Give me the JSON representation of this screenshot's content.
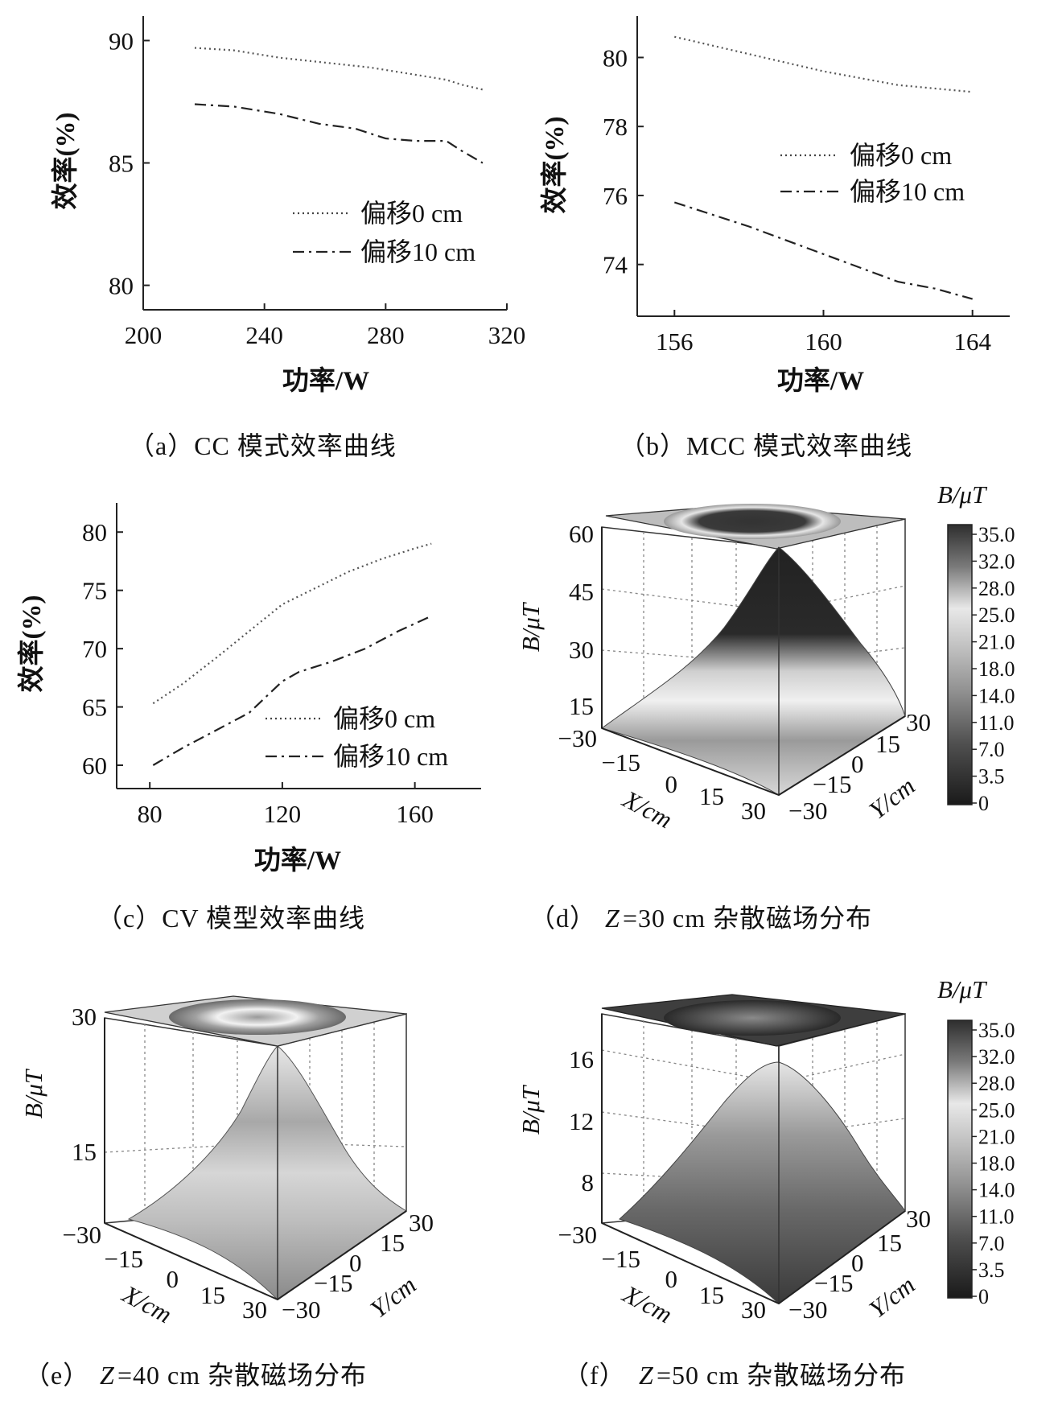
{
  "captions": {
    "a": "（a）CC 模式效率曲线",
    "b": "（b）MCC 模式效率曲线",
    "c": "（c）CV 模型效率曲线",
    "d_pre": "（d）",
    "d_z": "Z",
    "d_post": "=30 cm 杂散磁场分布",
    "e_pre": "（e）",
    "e_z": "Z",
    "e_post": "=40 cm 杂散磁场分布",
    "f_pre": "（f）",
    "f_z": "Z",
    "f_post": "=50 cm 杂散磁场分布"
  },
  "colorbar": {
    "title": "B/μT",
    "ticks": [
      "35.0",
      "32.0",
      "28.0",
      "25.0",
      "21.0",
      "18.0",
      "14.0",
      "11.0",
      "7.0",
      "3.5",
      "0"
    ]
  },
  "chart_data": [
    {
      "id": "a",
      "type": "line",
      "xlabel": "功率/W",
      "ylabel": "效率(%)",
      "xlim": [
        200,
        320
      ],
      "ylim": [
        79,
        91
      ],
      "xticks": [
        "200",
        "240",
        "280",
        "320"
      ],
      "xtick_values": [
        200,
        240,
        280,
        320
      ],
      "yticks": [
        "80",
        "85",
        "90"
      ],
      "ytick_values": [
        80,
        85,
        90
      ],
      "legend_position": "bottom-right",
      "series": [
        {
          "name": "偏移0 cm",
          "style": "dotted",
          "x": [
            217,
            230,
            245,
            260,
            275,
            290,
            300,
            305,
            312
          ],
          "y": [
            89.7,
            89.6,
            89.3,
            89.1,
            88.9,
            88.6,
            88.4,
            88.2,
            88.0
          ]
        },
        {
          "name": "偏移10 cm",
          "style": "dashdot",
          "x": [
            217,
            230,
            245,
            258,
            270,
            280,
            290,
            300,
            305,
            312
          ],
          "y": [
            87.4,
            87.3,
            87.0,
            86.6,
            86.4,
            86.0,
            85.9,
            85.9,
            85.5,
            85.0
          ]
        }
      ]
    },
    {
      "id": "b",
      "type": "line",
      "xlabel": "功率/W",
      "ylabel": "效率(%)",
      "xlim": [
        155,
        165
      ],
      "ylim": [
        72.5,
        81.2
      ],
      "xticks": [
        "156",
        "160",
        "164"
      ],
      "xtick_values": [
        156,
        160,
        164
      ],
      "yticks": [
        "74",
        "76",
        "78",
        "80"
      ],
      "ytick_values": [
        74,
        76,
        78,
        80
      ],
      "legend_position": "center-right",
      "series": [
        {
          "name": "偏移0 cm",
          "style": "dotted",
          "x": [
            156,
            158,
            160,
            162,
            164
          ],
          "y": [
            80.6,
            80.1,
            79.6,
            79.2,
            79.0
          ]
        },
        {
          "name": "偏移10 cm",
          "style": "dashdot",
          "x": [
            156,
            158,
            160,
            162,
            163,
            164
          ],
          "y": [
            75.8,
            75.1,
            74.3,
            73.5,
            73.3,
            73.0
          ]
        }
      ]
    },
    {
      "id": "c",
      "type": "line",
      "xlabel": "功率/W",
      "ylabel": "效率(%)",
      "xlim": [
        70,
        180
      ],
      "ylim": [
        58,
        82.5
      ],
      "xticks": [
        "80",
        "120",
        "160"
      ],
      "xtick_values": [
        80,
        120,
        160
      ],
      "yticks": [
        "60",
        "65",
        "70",
        "75",
        "80"
      ],
      "ytick_values": [
        60,
        65,
        70,
        75,
        80
      ],
      "legend_position": "bottom-right",
      "series": [
        {
          "name": "偏移0 cm",
          "style": "dotted",
          "x": [
            81,
            90,
            100,
            110,
            120,
            130,
            140,
            150,
            160,
            165
          ],
          "y": [
            65.3,
            67.0,
            69.2,
            71.5,
            73.8,
            75.2,
            76.6,
            77.7,
            78.6,
            79.0
          ]
        },
        {
          "name": "偏移10 cm",
          "style": "dashdot",
          "x": [
            81,
            90,
            100,
            110,
            120,
            125,
            135,
            145,
            155,
            165
          ],
          "y": [
            60.0,
            61.5,
            63.0,
            64.5,
            67.2,
            68.0,
            68.9,
            70.0,
            71.5,
            72.8
          ]
        }
      ]
    },
    {
      "id": "d",
      "type": "surface",
      "xlabel": "X/cm",
      "ylabel": "Y/cm",
      "zlabel": "B/μT",
      "xticks": [
        "−30",
        "−15",
        "0",
        "15",
        "30"
      ],
      "yticks": [
        "−30",
        "−15",
        "0",
        "15",
        "30"
      ],
      "zticks": [
        "15",
        "30",
        "45",
        "60"
      ],
      "zlim": [
        0,
        60
      ]
    },
    {
      "id": "e",
      "type": "surface",
      "xlabel": "X/cm",
      "ylabel": "Y/cm",
      "zlabel": "B/μT",
      "xticks": [
        "−30",
        "−15",
        "0",
        "15",
        "30"
      ],
      "yticks": [
        "−30",
        "−15",
        "0",
        "15",
        "30"
      ],
      "zticks": [
        "15",
        "30"
      ],
      "zlim": [
        0,
        30
      ]
    },
    {
      "id": "f",
      "type": "surface",
      "xlabel": "X/cm",
      "ylabel": "Y/cm",
      "zlabel": "B/μT",
      "xticks": [
        "−30",
        "−15",
        "0",
        "15",
        "30"
      ],
      "yticks": [
        "−30",
        "−15",
        "0",
        "15",
        "30"
      ],
      "zticks": [
        "8",
        "12",
        "16"
      ],
      "zlim": [
        5,
        17
      ]
    }
  ]
}
